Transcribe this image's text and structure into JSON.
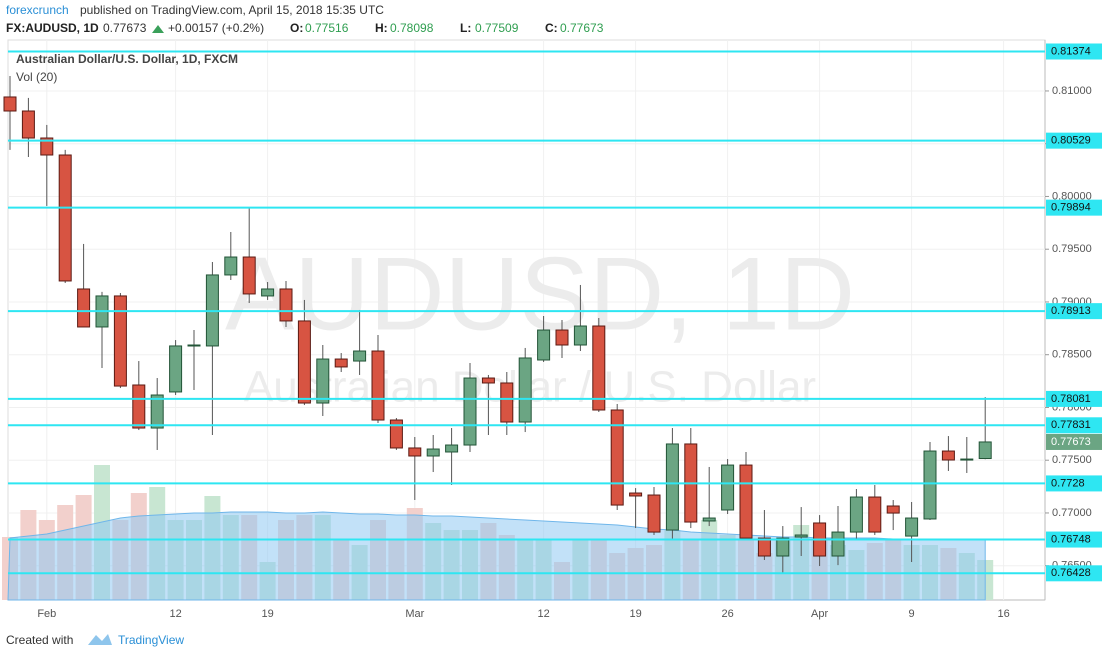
{
  "header": {
    "source": "forexcrunch",
    "published": "published on TradingView.com, April 15, 2018 15:35 UTC",
    "symbol": "FX:AUDUSD, 1D",
    "last": "0.77673",
    "change": "+0.00157 (+0.2%)",
    "ohlc": [
      {
        "label": "O:",
        "value": "0.77516"
      },
      {
        "label": "H:",
        "value": "0.78098"
      },
      {
        "label": "L:",
        "value": "0.77509"
      },
      {
        "label": "C:",
        "value": "0.77673"
      }
    ]
  },
  "footer": {
    "created": "Created with",
    "brand": "TradingView"
  },
  "chart_data": {
    "type": "candlestick",
    "legend": "Australian Dollar/U.S. Dollar, 1D, FXCM",
    "volume_label": "Vol (20)",
    "watermark": [
      "AUDUSD, 1D",
      "Australian Dollar / U.S. Dollar"
    ],
    "categories": [
      null,
      null,
      "Feb",
      null,
      null,
      null,
      null,
      null,
      null,
      "12",
      null,
      null,
      null,
      null,
      "19",
      null,
      null,
      null,
      null,
      null,
      null,
      null,
      "Mar",
      null,
      null,
      null,
      null,
      null,
      null,
      "12",
      null,
      null,
      null,
      null,
      "19",
      null,
      null,
      null,
      null,
      "26",
      null,
      null,
      null,
      null,
      "Apr",
      null,
      null,
      null,
      null,
      "9",
      null,
      null,
      null,
      null,
      "16"
    ],
    "open": [
      0.80943,
      0.8081,
      0.80554,
      0.80393,
      0.79123,
      0.78763,
      0.79057,
      0.78213,
      0.77805,
      0.78147,
      0.78583,
      0.78583,
      0.79256,
      0.79426,
      0.79057,
      0.79123,
      0.7882,
      0.78042,
      0.78459,
      0.7844,
      0.78535,
      0.77881,
      0.77616,
      0.7754,
      0.77578,
      0.77644,
      0.78279,
      0.78232,
      0.77862,
      0.7845,
      0.78734,
      0.78592,
      0.78772,
      0.77976,
      0.77189,
      0.7717,
      0.76838,
      0.77654,
      0.76924,
      0.77028,
      0.77454,
      0.76762,
      0.76592,
      0.76772,
      0.76905,
      0.76592,
      0.76819,
      0.77151,
      0.77066,
      0.76781,
      0.76943,
      0.77587,
      0.77502,
      0.77516,
      null
    ],
    "high": [
      0.81142,
      0.80934,
      0.80678,
      0.80441,
      0.7955,
      0.79095,
      0.79085,
      0.7844,
      0.78279,
      0.78639,
      0.78734,
      0.79379,
      0.79663,
      0.79891,
      0.79189,
      0.79199,
      0.79019,
      0.78592,
      0.78516,
      0.78924,
      0.78687,
      0.779,
      0.7772,
      0.77739,
      0.77805,
      0.78421,
      0.78308,
      0.78336,
      0.78564,
      0.78867,
      0.78829,
      0.79161,
      0.78848,
      0.78033,
      0.77236,
      0.77246,
      0.77805,
      0.77805,
      0.77436,
      0.77511,
      0.77578,
      0.77028,
      0.76876,
      0.77056,
      0.7698,
      0.77066,
      0.77227,
      0.77265,
      0.77123,
      0.77104,
      0.77673,
      0.77729,
      0.7772,
      0.78098,
      null
    ],
    "low": [
      0.80441,
      0.80374,
      0.7991,
      0.7918,
      0.78763,
      0.78374,
      0.78184,
      0.77786,
      0.77597,
      0.78118,
      0.78165,
      0.77739,
      0.79208,
      0.7899,
      0.79019,
      0.78763,
      0.78023,
      0.77919,
      0.78336,
      0.78308,
      0.77853,
      0.77597,
      0.77123,
      0.77388,
      0.77265,
      0.77578,
      0.77739,
      0.77739,
      0.77767,
      0.78431,
      0.78469,
      0.78535,
      0.77957,
      0.77028,
      0.76857,
      0.76791,
      0.76743,
      0.76857,
      0.76876,
      0.7699,
      0.76743,
      0.76554,
      0.76431,
      0.76592,
      0.76497,
      0.76506,
      0.76743,
      0.76791,
      0.76838,
      0.76535,
      0.76933,
      0.77398,
      0.77379,
      0.77509,
      null
    ],
    "close": [
      0.8081,
      0.80554,
      0.80393,
      0.79199,
      0.78763,
      0.79057,
      0.78203,
      0.77805,
      0.78118,
      0.78583,
      0.78592,
      0.79256,
      0.79426,
      0.79076,
      0.79123,
      0.7882,
      0.78042,
      0.78459,
      0.78384,
      0.78535,
      0.77881,
      0.77616,
      0.7754,
      0.77606,
      0.77644,
      0.78279,
      0.78232,
      0.77862,
      0.78469,
      0.78734,
      0.78592,
      0.78772,
      0.77976,
      0.77075,
      0.77161,
      0.76819,
      0.77654,
      0.76914,
      0.76952,
      0.77454,
      0.76762,
      0.76592,
      0.76762,
      0.76791,
      0.76592,
      0.76819,
      0.77151,
      0.76819,
      0.76999,
      0.76952,
      0.77587,
      0.77502,
      0.77511,
      0.77673,
      null
    ],
    "volume": [
      63,
      90,
      80,
      95,
      105,
      135,
      80,
      107,
      113,
      80,
      80,
      104,
      85,
      85,
      38,
      80,
      85,
      85,
      60,
      55,
      80,
      60,
      92,
      77,
      70,
      70,
      77,
      65,
      60,
      60,
      38,
      60,
      60,
      47,
      52,
      55,
      70,
      60,
      80,
      65,
      60,
      47,
      60,
      75,
      60,
      55,
      50,
      57,
      60,
      55,
      55,
      52,
      47,
      40,
      null
    ],
    "volume_ma": [
      62,
      64,
      66,
      70,
      74,
      78,
      82,
      84,
      85,
      86,
      87,
      87,
      88,
      88,
      88,
      87,
      87,
      88,
      87,
      86,
      86,
      85,
      85,
      84,
      84,
      83,
      82,
      81,
      80,
      79,
      78,
      77,
      76,
      75,
      73,
      71,
      70,
      68,
      67,
      66,
      65,
      64,
      63,
      63,
      62,
      62,
      62,
      62,
      61,
      61,
      61,
      60,
      60,
      60,
      null
    ],
    "up_color": "#6ba583",
    "down_color": "#d75442",
    "up_volume_color": "#c8e6d2",
    "down_volume_color": "#f2d0cc",
    "volume_ma_color": "#8fc8f2",
    "levels": [
      0.81374,
      0.80529,
      0.79894,
      0.78913,
      0.78081,
      0.77831,
      0.7728,
      0.76748,
      0.76428
    ],
    "level_color": "#2ee6f2",
    "ylim": [
      0.76175,
      0.81483
    ],
    "yticks": [
      {
        "value": 0.765,
        "label": "0.76500"
      },
      {
        "value": 0.77,
        "label": "0.77000"
      },
      {
        "value": 0.775,
        "label": "0.77500"
      },
      {
        "value": 0.78,
        "label": "0.78000"
      },
      {
        "value": 0.785,
        "label": "0.78500"
      },
      {
        "value": 0.79,
        "label": "0.79000"
      },
      {
        "value": 0.795,
        "label": "0.79500"
      },
      {
        "value": 0.8,
        "label": "0.80000"
      },
      {
        "value": 0.805,
        "label": "0.80500"
      },
      {
        "value": 0.81,
        "label": "0.81000"
      }
    ],
    "grid": true
  }
}
